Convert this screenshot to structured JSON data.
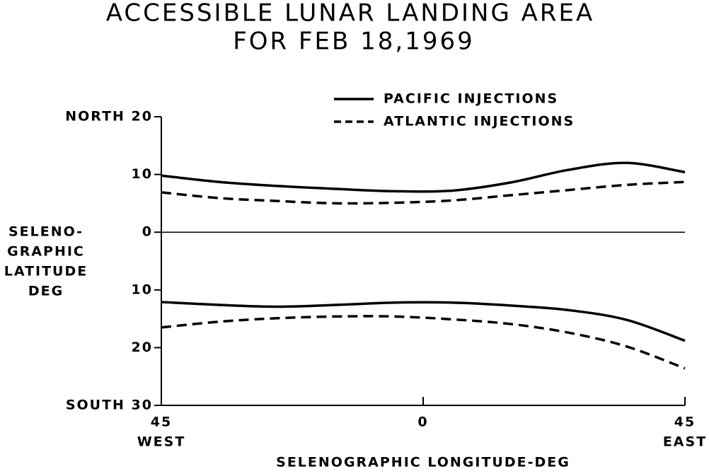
{
  "chart_data": {
    "type": "line",
    "title": [
      "ACCESSIBLE LUNAR LANDING AREA",
      "FOR FEB 18,1969"
    ],
    "x_label": "SELENOGRAPHIC LONGITUDE-DEG",
    "y_label": [
      "SELENO-",
      "GRAPHIC",
      "LATITUDE",
      "DEG"
    ],
    "x_end_labels": [
      "WEST",
      "EAST"
    ],
    "x": [
      -45,
      -35,
      -25,
      -15,
      -5,
      5,
      15,
      25,
      35,
      45
    ],
    "series": [
      {
        "name": "PACIFIC INJECTIONS",
        "color": "#000000",
        "dashed": false,
        "north_values": [
          9.8,
          8.7,
          8.0,
          7.5,
          7.1,
          7.2,
          8.6,
          10.8,
          12.0,
          10.4
        ],
        "south_values": [
          -12.1,
          -12.6,
          -12.9,
          -12.6,
          -12.2,
          -12.2,
          -12.7,
          -13.5,
          -15.2,
          -18.8
        ]
      },
      {
        "name": "ATLANTIC INJECTIONS",
        "color": "#000000",
        "dashed": true,
        "north_values": [
          6.9,
          5.9,
          5.4,
          5.0,
          5.1,
          5.5,
          6.4,
          7.3,
          8.2,
          8.7
        ],
        "south_values": [
          -16.5,
          -15.5,
          -14.9,
          -14.6,
          -14.6,
          -15.1,
          -15.9,
          -17.4,
          -19.8,
          -23.6
        ]
      }
    ],
    "xlim": [
      -45,
      45
    ],
    "ylim": [
      -30,
      20
    ],
    "xticks": [
      {
        "value": -45,
        "label": "45"
      },
      0,
      45
    ],
    "yticks": [
      {
        "value": 20,
        "label": "NORTH 20"
      },
      10,
      0,
      {
        "value": -10,
        "label": "10"
      },
      {
        "value": -20,
        "label": "20"
      },
      {
        "value": -30,
        "label": "SOUTH 30"
      }
    ],
    "zero_line": true,
    "legend": "top-right"
  }
}
